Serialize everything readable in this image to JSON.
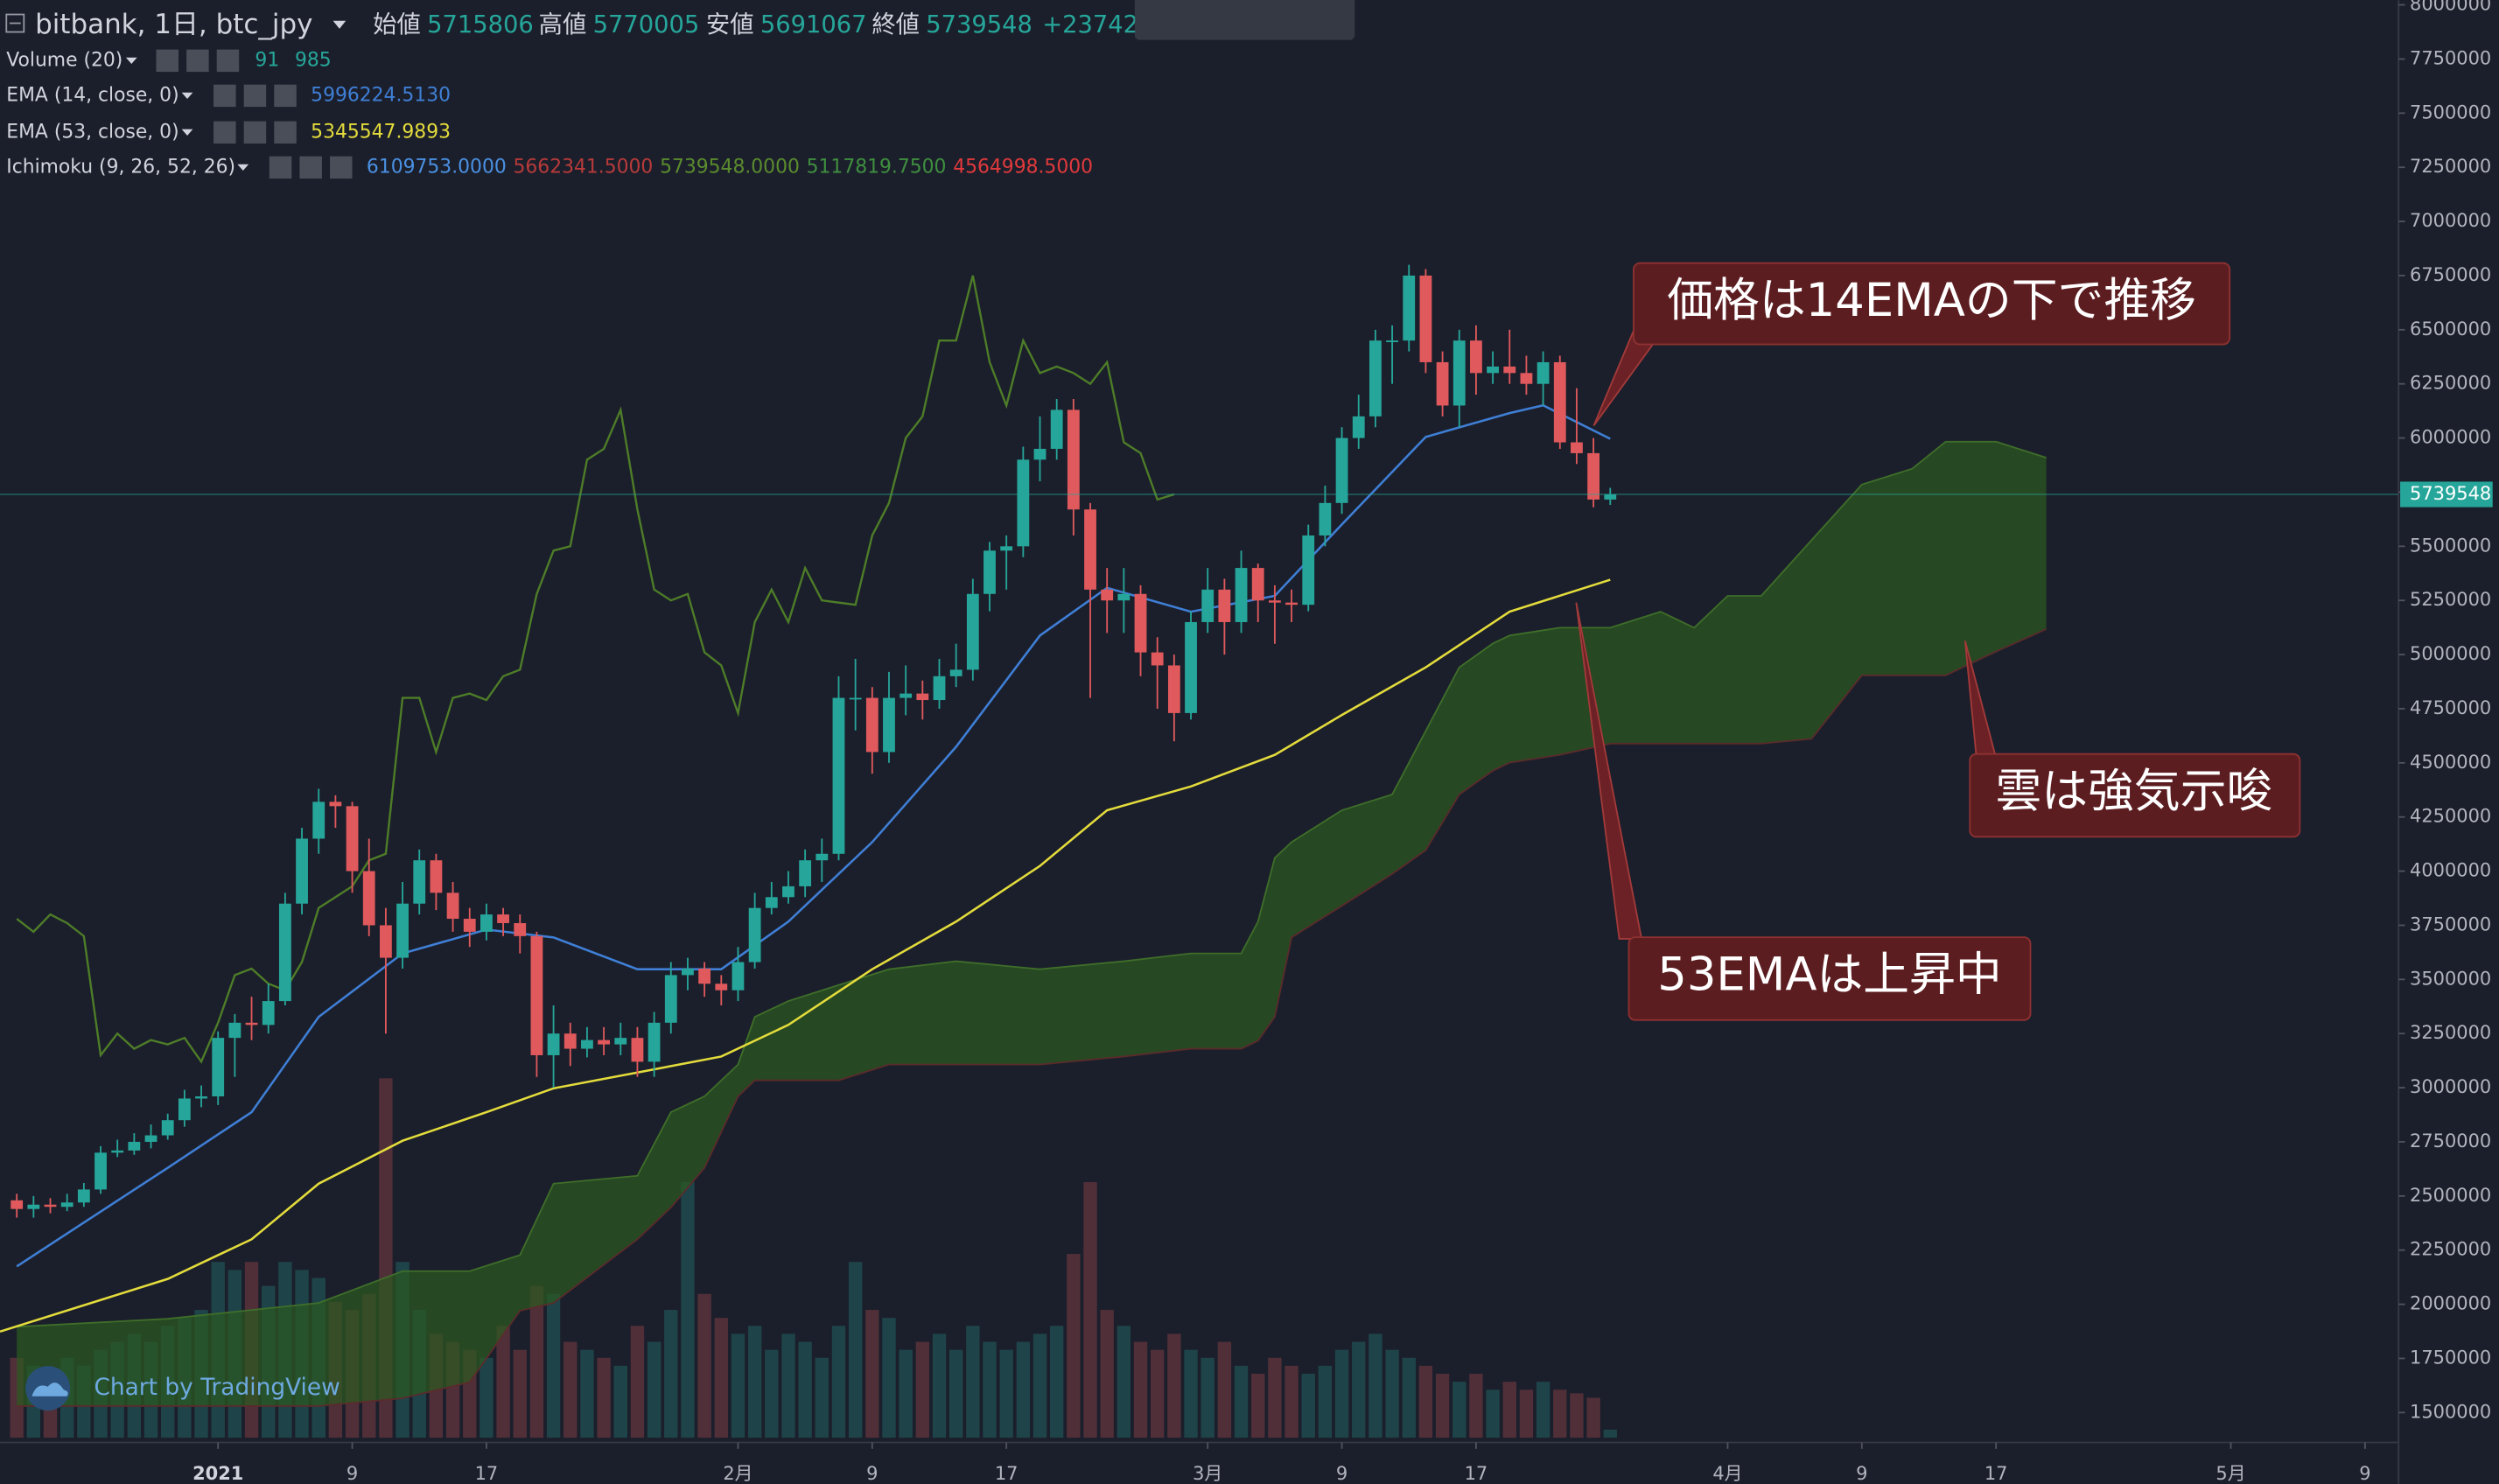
{
  "chart_data": {
    "type": "candlestick",
    "title": "bitbank, 1日, btc_jpy",
    "ohlc_labels": [
      "始値",
      "高値",
      "安値",
      "終値"
    ],
    "change": "+23742",
    "up_color": "#26a69a",
    "down_color": "#e0595c",
    "grid": false,
    "x": [
      "2020-12-20",
      "2020-12-21",
      "2020-12-22",
      "2020-12-23",
      "2020-12-24",
      "2020-12-25",
      "2020-12-26",
      "2020-12-27",
      "2020-12-28",
      "2020-12-29",
      "2020-12-30",
      "2020-12-31",
      "2021-01-01",
      "2021-01-02",
      "2021-01-03",
      "2021-01-04",
      "2021-01-05",
      "2021-01-06",
      "2021-01-07",
      "2021-01-08",
      "2021-01-09",
      "2021-01-10",
      "2021-01-11",
      "2021-01-12",
      "2021-01-13",
      "2021-01-14",
      "2021-01-15",
      "2021-01-16",
      "2021-01-17",
      "2021-01-18",
      "2021-01-19",
      "2021-01-20",
      "2021-01-21",
      "2021-01-22",
      "2021-01-23",
      "2021-01-24",
      "2021-01-25",
      "2021-01-26",
      "2021-01-27",
      "2021-01-28",
      "2021-01-29",
      "2021-01-30",
      "2021-01-31",
      "2021-02-01",
      "2021-02-02",
      "2021-02-03",
      "2021-02-04",
      "2021-02-05",
      "2021-02-06",
      "2021-02-07",
      "2021-02-08",
      "2021-02-09",
      "2021-02-10",
      "2021-02-11",
      "2021-02-12",
      "2021-02-13",
      "2021-02-14",
      "2021-02-15",
      "2021-02-16",
      "2021-02-17",
      "2021-02-18",
      "2021-02-19",
      "2021-02-20",
      "2021-02-21",
      "2021-02-22",
      "2021-02-23",
      "2021-02-24",
      "2021-02-25",
      "2021-02-26",
      "2021-02-27",
      "2021-02-28",
      "2021-03-01",
      "2021-03-02",
      "2021-03-03",
      "2021-03-04",
      "2021-03-05",
      "2021-03-06",
      "2021-03-07",
      "2021-03-08",
      "2021-03-09",
      "2021-03-10",
      "2021-03-11",
      "2021-03-12",
      "2021-03-13",
      "2021-03-14",
      "2021-03-15",
      "2021-03-16",
      "2021-03-17",
      "2021-03-18",
      "2021-03-19",
      "2021-03-20",
      "2021-03-21",
      "2021-03-22",
      "2021-03-23",
      "2021-03-24",
      "2021-03-25"
    ],
    "open": [
      2480000,
      2440000,
      2460000,
      2450000,
      2470000,
      2530000,
      2700000,
      2710000,
      2750000,
      2780000,
      2850000,
      2950000,
      2960000,
      3230000,
      3300000,
      3290000,
      3400000,
      3850000,
      4150000,
      4320000,
      4300000,
      4000000,
      3750000,
      3600000,
      3850000,
      4050000,
      3900000,
      3780000,
      3720000,
      3800000,
      3760000,
      3700000,
      3150000,
      3250000,
      3180000,
      3220000,
      3200000,
      3230000,
      3120000,
      3300000,
      3520000,
      3550000,
      3480000,
      3450000,
      3580000,
      3830000,
      3880000,
      3930000,
      4050000,
      4080000,
      4800000,
      4800000,
      4550000,
      4800000,
      4820000,
      4790000,
      4900000,
      4930000,
      5280000,
      5480000,
      5500000,
      5900000,
      5950000,
      6130000,
      5670000,
      5300000,
      5250000,
      5280000,
      5010000,
      4950000,
      4730000,
      5150000,
      5300000,
      5150000,
      5400000,
      5250000,
      5240000,
      5230000,
      5550000,
      5700000,
      6000000,
      6100000,
      6450000,
      6450000,
      6750000,
      6350000,
      6150000,
      6450000,
      6300000,
      6330000,
      6300000,
      6250000,
      6350000,
      5980000,
      5930000,
      5715806
    ],
    "high": [
      2510000,
      2500000,
      2490000,
      2510000,
      2560000,
      2730000,
      2760000,
      2790000,
      2830000,
      2880000,
      2990000,
      3010000,
      3260000,
      3340000,
      3420000,
      3480000,
      3900000,
      4200000,
      4380000,
      4350000,
      4320000,
      4150000,
      3830000,
      3950000,
      4100000,
      4080000,
      3950000,
      3830000,
      3850000,
      3830000,
      3800000,
      3720000,
      3380000,
      3300000,
      3280000,
      3280000,
      3300000,
      3280000,
      3350000,
      3580000,
      3600000,
      3580000,
      3520000,
      3650000,
      3900000,
      3950000,
      4000000,
      4100000,
      4150000,
      4900000,
      4980000,
      4850000,
      4920000,
      4950000,
      4880000,
      4980000,
      5050000,
      5350000,
      5520000,
      5550000,
      5960000,
      6100000,
      6180000,
      6180000,
      5700000,
      5400000,
      5400000,
      5320000,
      5080000,
      5000000,
      5200000,
      5400000,
      5350000,
      5480000,
      5420000,
      5320000,
      5300000,
      5600000,
      5780000,
      6050000,
      6200000,
      6500000,
      6520000,
      6800000,
      6780000,
      6400000,
      6500000,
      6520000,
      6400000,
      6500000,
      6380000,
      6400000,
      6380000,
      6230000,
      6000000,
      5770005
    ],
    "low": [
      2400000,
      2400000,
      2420000,
      2430000,
      2450000,
      2510000,
      2680000,
      2690000,
      2720000,
      2760000,
      2820000,
      2910000,
      2920000,
      3050000,
      3220000,
      3250000,
      3380000,
      3800000,
      4080000,
      4200000,
      3900000,
      3700000,
      3250000,
      3550000,
      3800000,
      3820000,
      3720000,
      3650000,
      3680000,
      3700000,
      3620000,
      3050000,
      3000000,
      3100000,
      3140000,
      3150000,
      3150000,
      3050000,
      3050000,
      3250000,
      3450000,
      3420000,
      3380000,
      3400000,
      3550000,
      3800000,
      3850000,
      3880000,
      3950000,
      4050000,
      4650000,
      4450000,
      4500000,
      4720000,
      4700000,
      4750000,
      4850000,
      4880000,
      5200000,
      5300000,
      5450000,
      5800000,
      5900000,
      5550000,
      4800000,
      5100000,
      5100000,
      4900000,
      4750000,
      4600000,
      4700000,
      5100000,
      5000000,
      5100000,
      5150000,
      5050000,
      5150000,
      5200000,
      5500000,
      5650000,
      5950000,
      6050000,
      6250000,
      6400000,
      6300000,
      6100000,
      6050000,
      6200000,
      6250000,
      6250000,
      6200000,
      6150000,
      5950000,
      5880000,
      5680000,
      5691067
    ],
    "close": [
      2440000,
      2460000,
      2450000,
      2470000,
      2530000,
      2700000,
      2710000,
      2750000,
      2780000,
      2850000,
      2950000,
      2960000,
      3230000,
      3300000,
      3290000,
      3400000,
      3850000,
      4150000,
      4320000,
      4300000,
      4000000,
      3750000,
      3600000,
      3850000,
      4050000,
      3900000,
      3780000,
      3720000,
      3800000,
      3760000,
      3700000,
      3150000,
      3250000,
      3180000,
      3220000,
      3200000,
      3230000,
      3120000,
      3300000,
      3520000,
      3550000,
      3480000,
      3450000,
      3580000,
      3830000,
      3880000,
      3930000,
      4050000,
      4080000,
      4800000,
      4800000,
      4550000,
      4800000,
      4820000,
      4790000,
      4900000,
      4930000,
      5280000,
      5480000,
      5500000,
      5900000,
      5950000,
      6130000,
      5670000,
      5300000,
      5250000,
      5280000,
      5010000,
      4950000,
      4730000,
      5150000,
      5300000,
      5150000,
      5400000,
      5250000,
      5240000,
      5230000,
      5550000,
      5700000,
      6000000,
      6100000,
      6450000,
      6450000,
      6750000,
      6350000,
      6150000,
      6450000,
      6300000,
      6330000,
      6300000,
      6250000,
      6350000,
      5980000,
      5930000,
      5715806,
      5739548
    ],
    "xlim": [
      "2020-12-19",
      "2021-05-11"
    ],
    "xticks": [
      {
        "value": "2021-01-01",
        "label": "2021"
      },
      {
        "value": "2021-01-09",
        "label": "9"
      },
      {
        "value": "2021-01-17",
        "label": "17"
      },
      {
        "value": "2021-02-01",
        "label": "2月"
      },
      {
        "value": "2021-02-09",
        "label": "9"
      },
      {
        "value": "2021-02-17",
        "label": "17"
      },
      {
        "value": "2021-03-01",
        "label": "3月"
      },
      {
        "value": "2021-03-09",
        "label": "9"
      },
      {
        "value": "2021-03-17",
        "label": "17"
      },
      {
        "value": "2021-04-01",
        "label": "4月"
      },
      {
        "value": "2021-04-09",
        "label": "9"
      },
      {
        "value": "2021-04-17",
        "label": "17"
      },
      {
        "value": "2021-05-01",
        "label": "5月"
      },
      {
        "value": "2021-05-09",
        "label": "9"
      }
    ],
    "ylim": [
      1384000,
      8022000
    ],
    "yticks": [
      1500000,
      1750000,
      2000000,
      2250000,
      2500000,
      2750000,
      3000000,
      3250000,
      3500000,
      3750000,
      4000000,
      4250000,
      4500000,
      4750000,
      5000000,
      5250000,
      5500000,
      5750000,
      6000000,
      6250000,
      6500000,
      6750000,
      7000000,
      7250000,
      7500000,
      7750000,
      8000000
    ],
    "volume": {
      "name": "Volume (20)",
      "ma_label": "985",
      "lim": [
        0,
        16200
      ],
      "values": [
        900,
        810,
        720,
        900,
        810,
        990,
        1080,
        1170,
        1080,
        1260,
        1350,
        1440,
        1980,
        1890,
        1980,
        1710,
        1980,
        1890,
        1800,
        1530,
        1440,
        1620,
        4050,
        1980,
        1440,
        1170,
        1080,
        990,
        900,
        1260,
        990,
        1710,
        1620,
        1080,
        990,
        900,
        810,
        1260,
        1080,
        1440,
        2880,
        1620,
        1350,
        1170,
        1260,
        990,
        1170,
        1080,
        900,
        1260,
        1980,
        1440,
        1350,
        990,
        1080,
        1170,
        990,
        1260,
        1080,
        990,
        1080,
        1170,
        1260,
        2070,
        2880,
        1440,
        1260,
        1080,
        990,
        1170,
        990,
        900,
        1080,
        810,
        720,
        900,
        810,
        720,
        810,
        990,
        1080,
        1170,
        990,
        900,
        810,
        720,
        630,
        720,
        540,
        630,
        540,
        630,
        540,
        500,
        450,
        91
      ]
    },
    "lines": [
      {
        "name": "EMA (14, close, 0)",
        "legend": "5996224.5130",
        "color": "#3f7fd6",
        "x": [
          "2020-12-20",
          "2020-12-29",
          "2021-01-03",
          "2021-01-07",
          "2021-01-12",
          "2021-01-17",
          "2021-01-21",
          "2021-01-26",
          "2021-01-31",
          "2021-02-04",
          "2021-02-09",
          "2021-02-14",
          "2021-02-19",
          "2021-02-23",
          "2021-02-28",
          "2021-03-05",
          "2021-03-09",
          "2021-03-14",
          "2021-03-19",
          "2021-03-21",
          "2021-03-25"
        ],
        "values": [
          2175000,
          2630000,
          2887000,
          3327000,
          3620000,
          3730000,
          3694000,
          3547000,
          3547000,
          3767000,
          4134000,
          4574000,
          5088000,
          5308000,
          5198000,
          5271000,
          5601000,
          6005000,
          6115000,
          6151000,
          5996224
        ]
      },
      {
        "name": "EMA (53, close, 0)",
        "legend": "5345547.9893",
        "color": "#e4dc3c",
        "x": [
          "2020-12-19",
          "2020-12-29",
          "2021-01-03",
          "2021-01-07",
          "2021-01-12",
          "2021-01-17",
          "2021-01-21",
          "2021-01-26",
          "2021-01-31",
          "2021-02-04",
          "2021-02-09",
          "2021-02-14",
          "2021-02-19",
          "2021-02-23",
          "2021-02-28",
          "2021-03-05",
          "2021-03-09",
          "2021-03-14",
          "2021-03-19",
          "2021-03-25"
        ],
        "values": [
          1874000,
          2117000,
          2300000,
          2557000,
          2755000,
          2887000,
          2997000,
          3070000,
          3144000,
          3290000,
          3547000,
          3767000,
          4024000,
          4281000,
          4391000,
          4537000,
          4721000,
          4941000,
          5198000,
          5345547
        ]
      }
    ],
    "ichimoku": {
      "name": "Ichimoku (9, 26, 52, 26)",
      "legend": [
        {
          "text": "6109753.0000",
          "color": "#4a90e2"
        },
        {
          "text": "5662341.5000",
          "color": "#b83a3a"
        },
        {
          "text": "5739548.0000",
          "color": "#5b8c2e"
        },
        {
          "text": "5117819.7500",
          "color": "#3f8f3f"
        },
        {
          "text": "4564998.5000",
          "color": "#e0393c"
        }
      ],
      "lagging_shift": 26,
      "lagging_color": "#4e7d28",
      "cloud_color": "#2b5a1f",
      "span_a_color": "#3f6e2a",
      "span_b_color": "#5a2b2b",
      "cloud_x": [
        "2020-12-20",
        "2020-12-29",
        "2021-01-07",
        "2021-01-12",
        "2021-01-16",
        "2021-01-19",
        "2021-01-21",
        "2021-01-26",
        "2021-01-28",
        "2021-01-30",
        "2021-02-01",
        "2021-02-02",
        "2021-02-04",
        "2021-02-07",
        "2021-02-10",
        "2021-02-14",
        "2021-02-19",
        "2021-02-24",
        "2021-02-28",
        "2021-03-03",
        "2021-03-04",
        "2021-03-05",
        "2021-03-06",
        "2021-03-09",
        "2021-03-12",
        "2021-03-14",
        "2021-03-16",
        "2021-03-18",
        "2021-03-19",
        "2021-03-22",
        "2021-03-25",
        "2021-03-28",
        "2021-03-30",
        "2021-04-01",
        "2021-04-03",
        "2021-04-06",
        "2021-04-09",
        "2021-04-12",
        "2021-04-14",
        "2021-04-17",
        "2021-04-20"
      ],
      "span_a": [
        1896000,
        1933000,
        2006000,
        2153000,
        2153000,
        2227000,
        2557000,
        2593000,
        2887000,
        2960000,
        3107000,
        3327000,
        3400000,
        3474000,
        3547000,
        3584000,
        3547000,
        3584000,
        3620000,
        3620000,
        3767000,
        4061000,
        4134000,
        4281000,
        4354000,
        4647000,
        4941000,
        5051000,
        5088000,
        5124000,
        5124000,
        5198000,
        5124000,
        5271000,
        5271000,
        5528000,
        5785000,
        5858000,
        5983000,
        5983000,
        5909000
      ],
      "span_b": [
        1530000,
        1530000,
        1530000,
        1566000,
        1640000,
        1970000,
        2006000,
        2300000,
        2447000,
        2630000,
        2960000,
        3034000,
        3034000,
        3034000,
        3107000,
        3107000,
        3107000,
        3144000,
        3180000,
        3180000,
        3217000,
        3327000,
        3694000,
        3840000,
        3987000,
        4097000,
        4354000,
        4464000,
        4501000,
        4537000,
        4589000,
        4589000,
        4589000,
        4589000,
        4589000,
        4611000,
        4904000,
        4904000,
        4904000,
        5014000,
        5117820
      ]
    },
    "annotations": [
      {
        "text": "価格は14EMAの下で推移"
      },
      {
        "text": "雲は強気示唆"
      },
      {
        "text": "53EMAは上昇中"
      }
    ],
    "watermark": "Chart by TradingView"
  }
}
